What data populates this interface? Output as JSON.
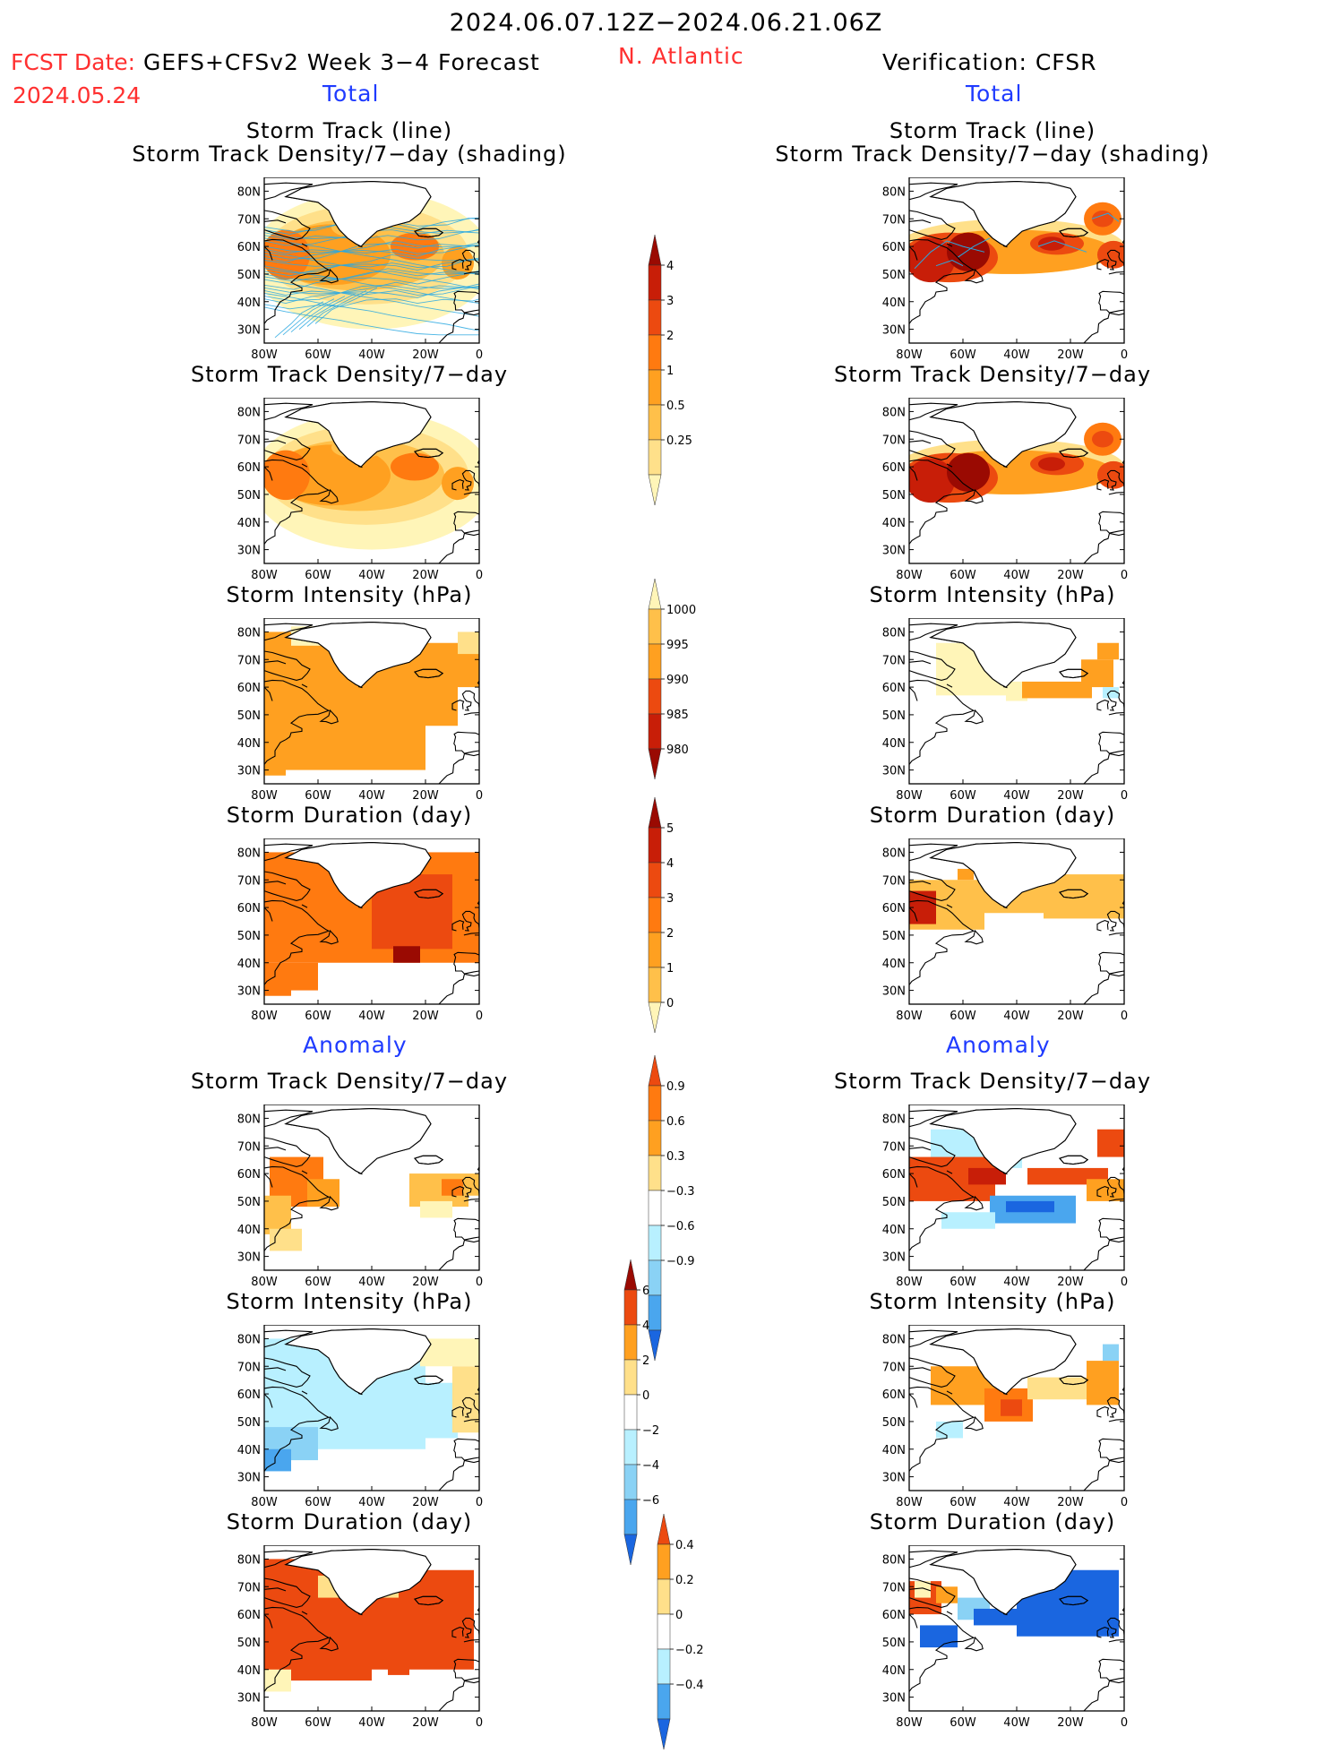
{
  "header": {
    "period": "2024.06.07.12Z−2024.06.21.06Z",
    "fcst_label": "FCST Date:",
    "fcst_date": "2024.05.24",
    "model": "GEFS+CFSv2 Week 3−4 Forecast",
    "region": "N. Atlantic",
    "verification": "Verification: CFSR"
  },
  "sections": {
    "total": "Total",
    "anomaly": "Anomaly"
  },
  "panel_titles": {
    "track_line": "Storm Track (line)",
    "track_shading": "Storm Track Density/7−day (shading)",
    "density": "Storm Track Density/7−day",
    "intensity": "Storm Intensity (hPa)",
    "duration": "Storm Duration (day)"
  },
  "axes": {
    "lat_ticks": [
      "80N",
      "70N",
      "60N",
      "50N",
      "40N",
      "30N"
    ],
    "lon_ticks": [
      "80W",
      "60W",
      "40W",
      "20W",
      "0"
    ]
  },
  "colorbars": {
    "density_total": [
      "4",
      "3",
      "2",
      "1",
      "0.5",
      "0.25"
    ],
    "intensity_total": [
      "1000",
      "995",
      "990",
      "985",
      "980"
    ],
    "duration_total": [
      "5",
      "4",
      "3",
      "2",
      "1",
      "0"
    ],
    "density_anom": [
      "0.9",
      "0.6",
      "0.3",
      "−0.3",
      "−0.6",
      "−0.9"
    ],
    "intensity_anom": [
      "6",
      "4",
      "2",
      "0",
      "−2",
      "−4",
      "−6"
    ],
    "duration_anom": [
      "0.4",
      "0.2",
      "0",
      "−0.2",
      "−0.4"
    ]
  },
  "colors": {
    "red_text": "#ff3030",
    "blue_text": "#1f3bff",
    "track_line": "#2aa8e0"
  }
}
